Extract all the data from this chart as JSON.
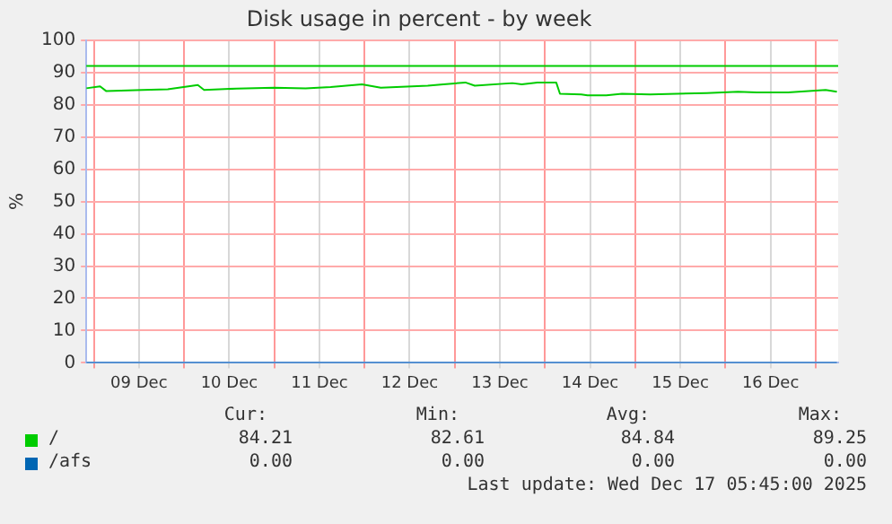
{
  "chart_data": {
    "type": "line",
    "title": "Disk usage in percent - by week",
    "ylabel": "%",
    "xlim": [
      "2025-12-08T22:00",
      "2025-12-17T06:00"
    ],
    "xticks": [
      {
        "value": "2025-12-09T00:00",
        "label": null
      },
      {
        "value": "2025-12-09T12:00",
        "label": "09 Dec"
      },
      {
        "value": "2025-12-10T00:00",
        "label": null
      },
      {
        "value": "2025-12-10T12:00",
        "label": "10 Dec"
      },
      {
        "value": "2025-12-11T00:00",
        "label": null
      },
      {
        "value": "2025-12-11T12:00",
        "label": "11 Dec"
      },
      {
        "value": "2025-12-12T00:00",
        "label": null
      },
      {
        "value": "2025-12-12T12:00",
        "label": "12 Dec"
      },
      {
        "value": "2025-12-13T00:00",
        "label": null
      },
      {
        "value": "2025-12-13T12:00",
        "label": "13 Dec"
      },
      {
        "value": "2025-12-14T00:00",
        "label": null
      },
      {
        "value": "2025-12-14T12:00",
        "label": "14 Dec"
      },
      {
        "value": "2025-12-15T00:00",
        "label": null
      },
      {
        "value": "2025-12-15T12:00",
        "label": "15 Dec"
      },
      {
        "value": "2025-12-16T00:00",
        "label": null
      },
      {
        "value": "2025-12-16T12:00",
        "label": "16 Dec"
      },
      {
        "value": "2025-12-17T00:00",
        "label": null
      }
    ],
    "ylim": [
      0,
      100
    ],
    "yticks": [
      0,
      10,
      20,
      30,
      40,
      50,
      60,
      70,
      80,
      90,
      100
    ],
    "grid": true,
    "legend": "bottom",
    "marker": "none",
    "line_style": "solid",
    "series": [
      {
        "name": "/",
        "color": "#00cc00",
        "x": [
          "2025-12-08T22:00",
          "2025-12-09T01:40",
          "2025-12-09T03:20",
          "2025-12-09T13:00",
          "2025-12-09T19:40",
          "2025-12-10T03:40",
          "2025-12-10T05:20",
          "2025-12-10T14:00",
          "2025-12-11T00:00",
          "2025-12-11T08:20",
          "2025-12-11T15:00",
          "2025-12-11T23:20",
          "2025-12-12T04:20",
          "2025-12-12T16:50",
          "2025-12-12T21:00",
          "2025-12-13T02:50",
          "2025-12-13T05:20",
          "2025-12-13T15:20",
          "2025-12-13T17:50",
          "2025-12-13T22:00",
          "2025-12-14T03:00",
          "2025-12-14T04:00",
          "2025-12-14T09:40",
          "2025-12-14T11:20",
          "2025-12-14T16:20",
          "2025-12-14T20:30",
          "2025-12-15T04:00",
          "2025-12-15T19:00",
          "2025-12-16T03:20",
          "2025-12-16T08:20",
          "2025-12-16T16:40",
          "2025-12-17T02:40",
          "2025-12-17T05:40"
        ],
        "values": [
          85.1,
          85.7,
          84.2,
          84.6,
          84.8,
          86.1,
          84.6,
          85.0,
          85.3,
          85.1,
          85.5,
          86.3,
          85.3,
          85.9,
          86.3,
          86.9,
          85.9,
          86.7,
          86.3,
          86.9,
          86.9,
          83.4,
          83.2,
          82.9,
          82.9,
          83.4,
          83.2,
          83.6,
          84.0,
          83.8,
          83.8,
          84.6,
          84.0
        ]
      },
      {
        "name": "/afs",
        "color": "#0066b3",
        "x": [
          "2025-12-08T22:00",
          "2025-12-17T05:40"
        ],
        "values": [
          0,
          0
        ]
      }
    ],
    "ref_lines": [
      {
        "axis": "y",
        "value": 92,
        "color": "#00cc00"
      }
    ],
    "annotations": [
      "Cur:",
      "Min:",
      "Avg:",
      "Max:",
      "84.21",
      "82.61",
      "84.84",
      "89.25",
      "0.00",
      "0.00",
      "0.00",
      "0.00",
      "Last update: Wed Dec 17 05:45:00 2025"
    ]
  }
}
